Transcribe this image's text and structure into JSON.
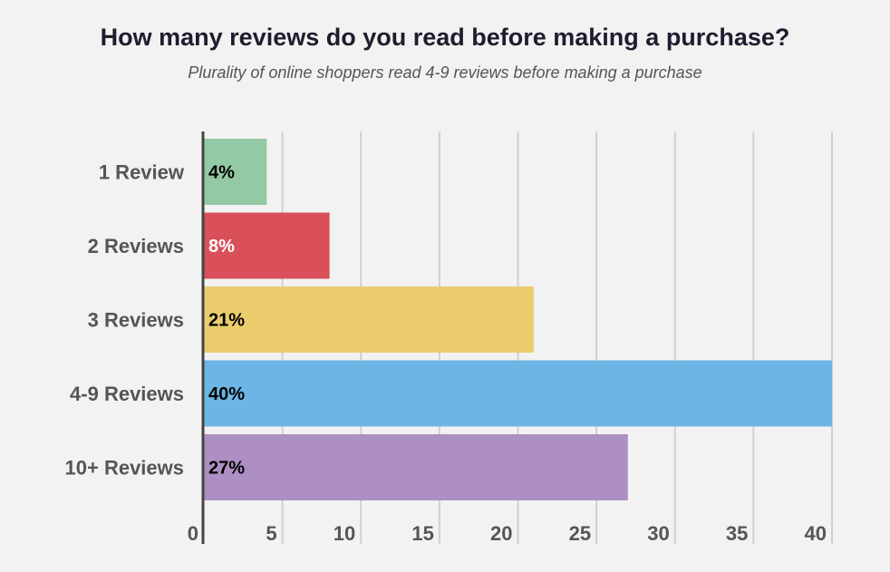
{
  "chart_data": {
    "type": "bar",
    "orientation": "horizontal",
    "title": "How many reviews do you read before making a purchase?",
    "subtitle": "Plurality of online shoppers read 4-9 reviews before making a purchase",
    "categories": [
      "1 Review",
      "2 Reviews",
      "3 Reviews",
      "4-9 Reviews",
      "10+ Reviews"
    ],
    "values": [
      4,
      8,
      21,
      40,
      27
    ],
    "data_labels": [
      "4%",
      "8%",
      "21%",
      "40%",
      "27%"
    ],
    "colors": [
      "#93c9a4",
      "#d9505a",
      "#ebcd6e",
      "#6cb5e4",
      "#ad8fc4"
    ],
    "label_colors": [
      "#000000",
      "#ffffff",
      "#000000",
      "#000000",
      "#000000"
    ],
    "x_ticks": [
      0,
      5,
      10,
      15,
      20,
      25,
      30,
      35,
      40
    ],
    "x_tick_labels": [
      "0",
      "5",
      "10",
      "15",
      "20",
      "25",
      "30",
      "35",
      "40"
    ],
    "xlim": [
      0,
      40
    ],
    "grid": "vertical",
    "legend": "none"
  }
}
